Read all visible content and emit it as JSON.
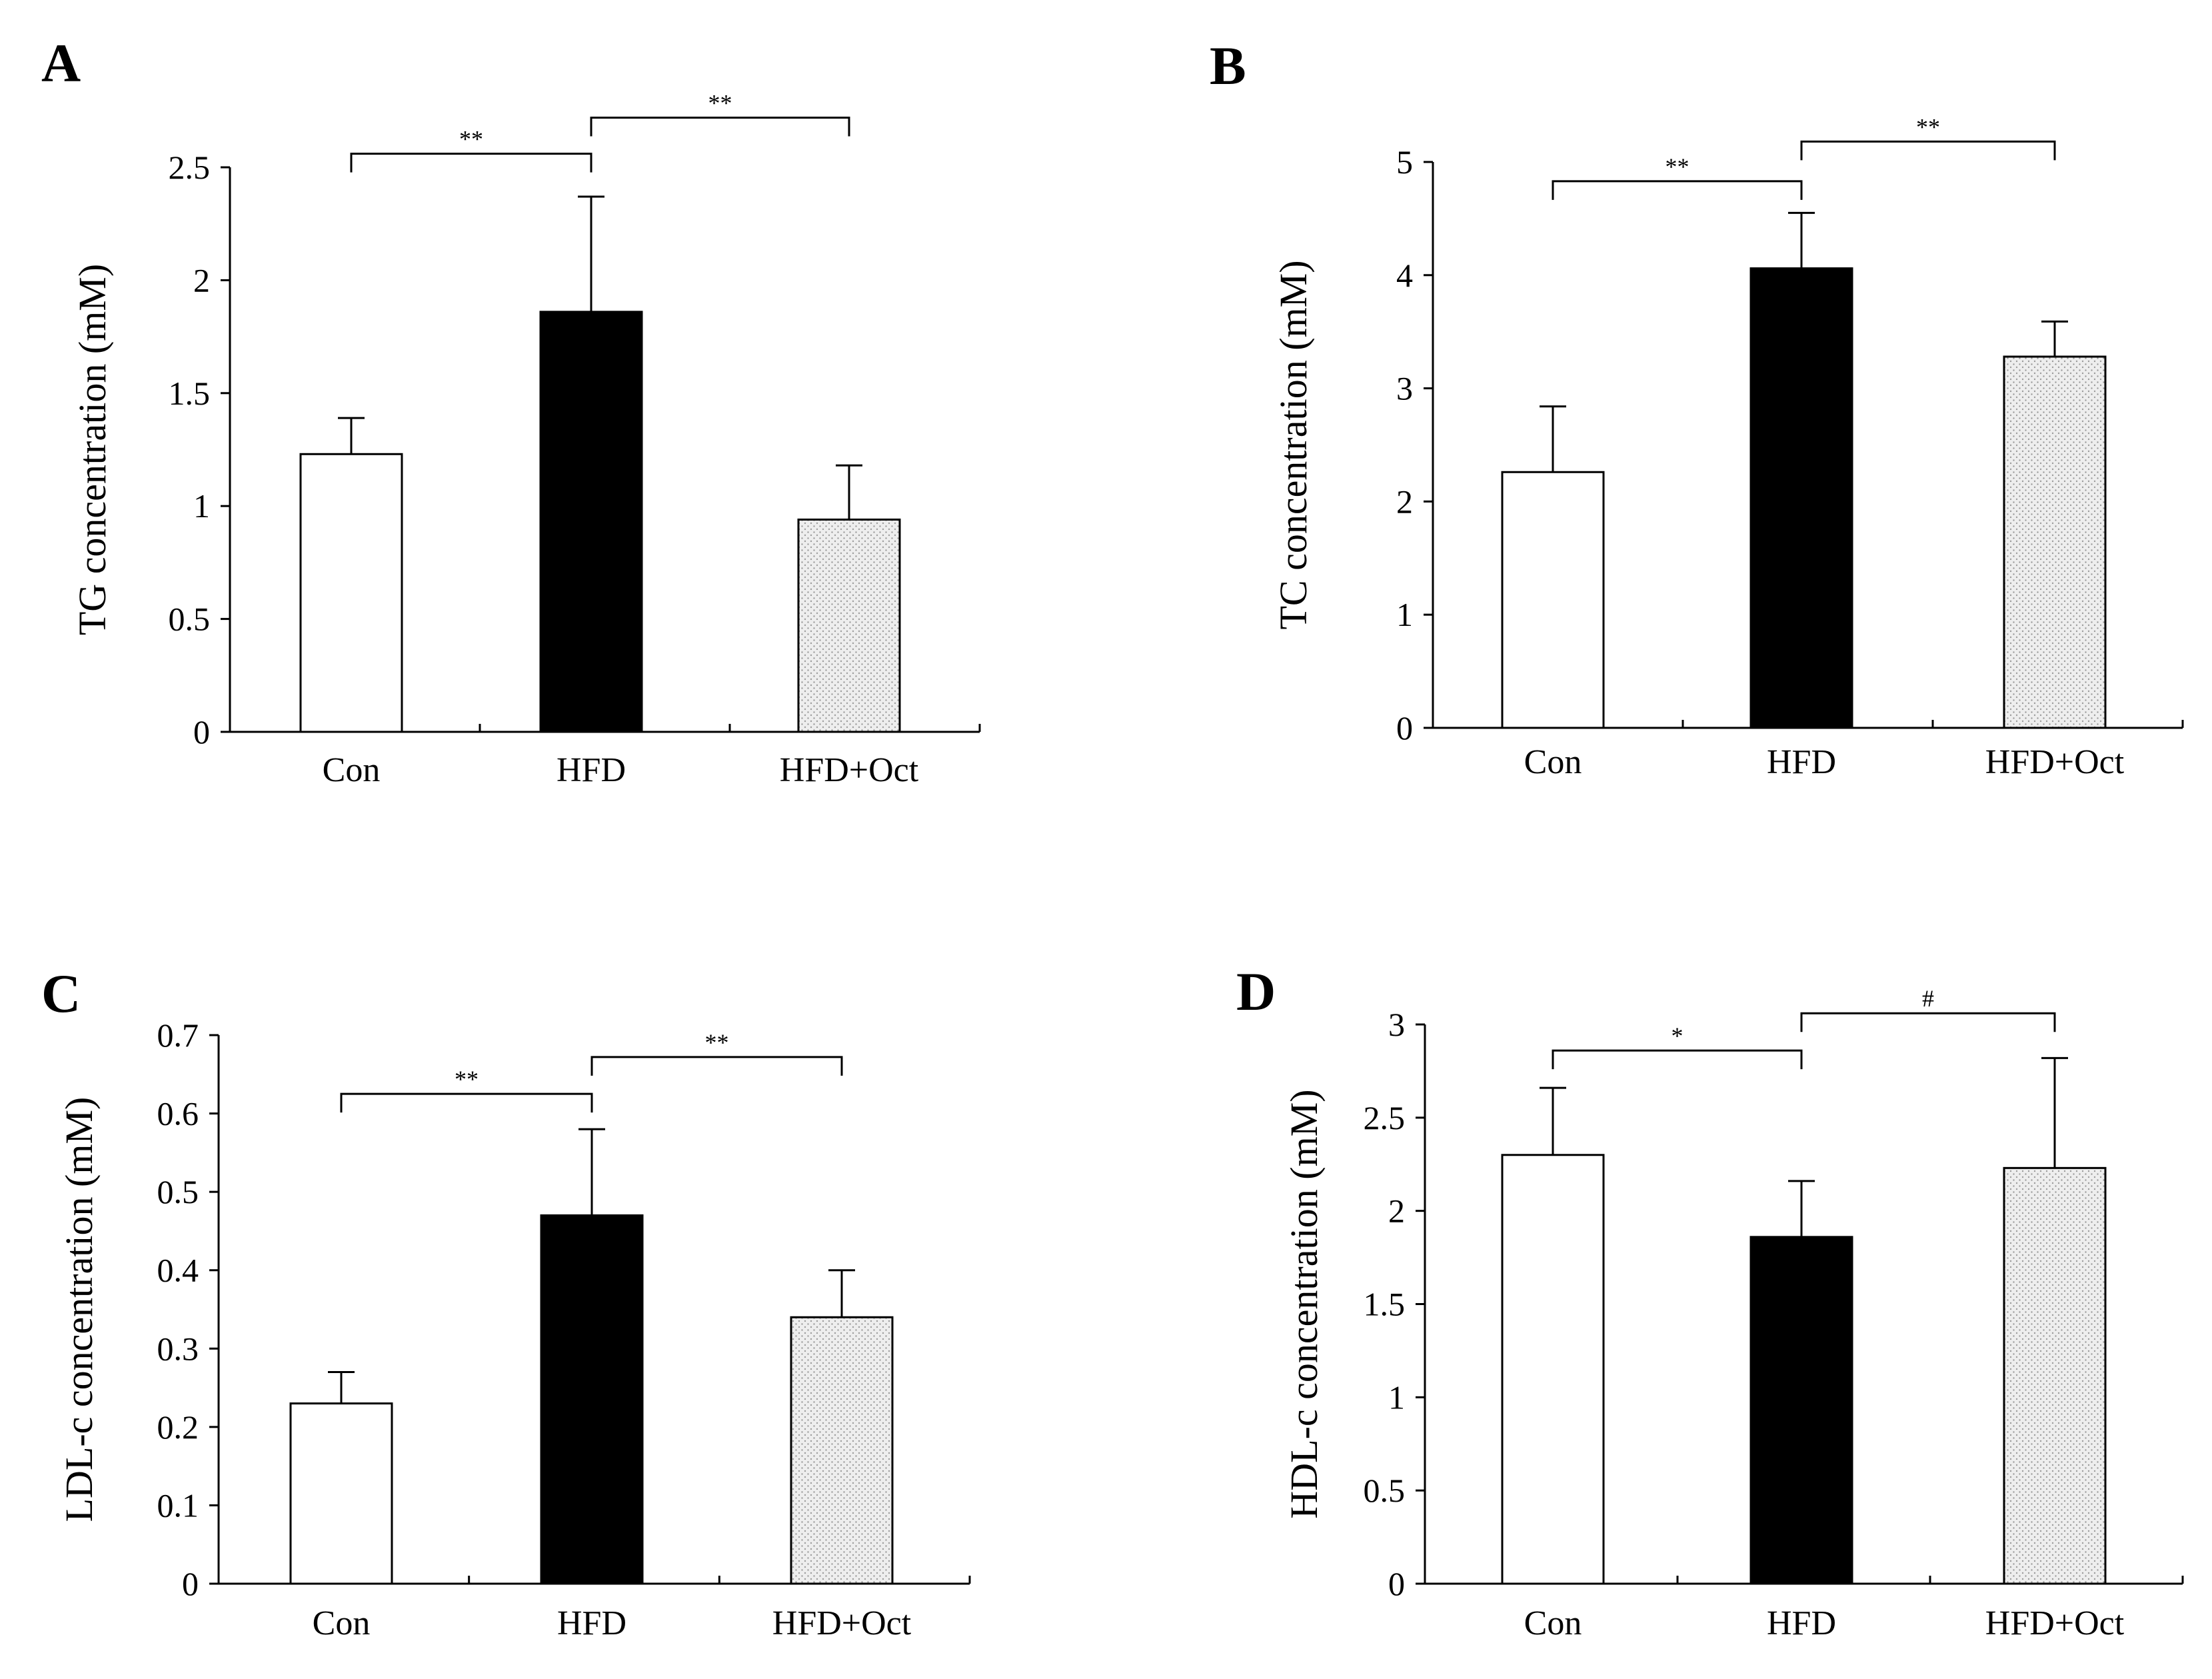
{
  "colors": {
    "con_fill": "#ffffff",
    "hfd_fill": "#000000",
    "oct_fill": "#eeeeee",
    "oct_dot": "#9a9a9a",
    "line": "#000000"
  },
  "chart_data": [
    {
      "type": "bar",
      "panel": "A",
      "ylabel": "TG concentration (mM)",
      "categories": [
        "Con",
        "HFD",
        "HFD+Oct"
      ],
      "values": [
        1.23,
        1.86,
        0.94
      ],
      "errors": [
        0.16,
        0.51,
        0.24
      ],
      "ylim": [
        0,
        2.5
      ],
      "yticks": [
        0,
        0.5,
        1,
        1.5,
        2,
        2.5
      ],
      "ytick_labels": [
        "0",
        "0.5",
        "1",
        "1.5",
        "2",
        "2.5"
      ],
      "significance": [
        {
          "from": 0,
          "to": 1,
          "label": "**",
          "y": 2.56
        },
        {
          "from": 1,
          "to": 2,
          "label": "**",
          "y": 2.72
        }
      ]
    },
    {
      "type": "bar",
      "panel": "B",
      "ylabel": "TC concentration (mM)",
      "categories": [
        "Con",
        "HFD",
        "HFD+Oct"
      ],
      "values": [
        2.26,
        4.06,
        3.28
      ],
      "errors": [
        0.58,
        0.49,
        0.31
      ],
      "ylim": [
        0,
        5
      ],
      "yticks": [
        0,
        1,
        2,
        3,
        4,
        5
      ],
      "ytick_labels": [
        "0",
        "1",
        "2",
        "3",
        "4",
        "5"
      ],
      "significance": [
        {
          "from": 0,
          "to": 1,
          "label": "**",
          "y": 4.83
        },
        {
          "from": 1,
          "to": 2,
          "label": "**",
          "y": 5.18
        }
      ]
    },
    {
      "type": "bar",
      "panel": "C",
      "ylabel": "LDL-c concentration (mM)",
      "categories": [
        "Con",
        "HFD",
        "HFD+Oct"
      ],
      "values": [
        0.23,
        0.47,
        0.34
      ],
      "errors": [
        0.04,
        0.11,
        0.06
      ],
      "ylim": [
        0,
        0.7
      ],
      "yticks": [
        0,
        0.1,
        0.2,
        0.3,
        0.4,
        0.5,
        0.6,
        0.7
      ],
      "ytick_labels": [
        "0",
        "0.1",
        "0.2",
        "0.3",
        "0.4",
        "0.5",
        "0.6",
        "0.7"
      ],
      "significance": [
        {
          "from": 0,
          "to": 1,
          "label": "**",
          "y": 0.625
        },
        {
          "from": 1,
          "to": 2,
          "label": "**",
          "y": 0.672
        }
      ]
    },
    {
      "type": "bar",
      "panel": "D",
      "ylabel": "HDL-c concentration (mM)",
      "categories": [
        "Con",
        "HFD",
        "HFD+Oct"
      ],
      "values": [
        2.3,
        1.86,
        2.23
      ],
      "errors": [
        0.36,
        0.3,
        0.59
      ],
      "ylim": [
        0,
        3
      ],
      "yticks": [
        0,
        0.5,
        1,
        1.5,
        2,
        2.5,
        3
      ],
      "ytick_labels": [
        "0",
        "0.5",
        "1",
        "1.5",
        "2",
        "2.5",
        "3"
      ],
      "significance": [
        {
          "from": 0,
          "to": 1,
          "label": "*",
          "y": 2.86
        },
        {
          "from": 1,
          "to": 2,
          "label": "#",
          "y": 3.06
        }
      ]
    }
  ]
}
